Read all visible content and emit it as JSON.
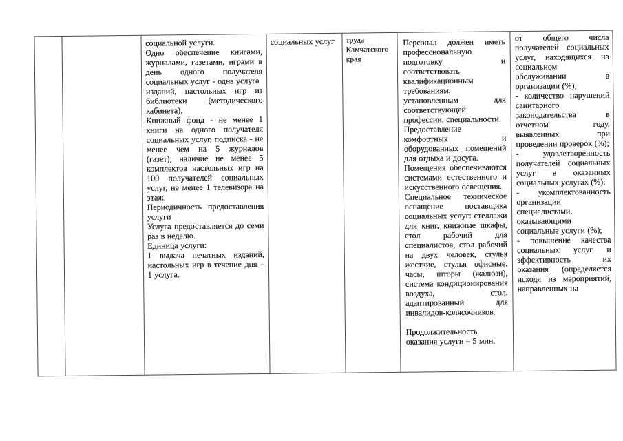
{
  "page": {
    "kind": "scanned document page",
    "language": "ru",
    "paper_color": "#ffffff",
    "ink_color": "#1f1f1f",
    "border_color": "#4b4b4b"
  },
  "table": {
    "columns": [
      {
        "name": "column-1-empty",
        "paragraphs": []
      },
      {
        "name": "column-2-empty",
        "paragraphs": []
      },
      {
        "name": "column-3-service-description",
        "paragraphs": [
          "социальной услуги.",
          "Одно обеспечение книгами, журналами, газетами, играми в день одного получателя социальных услуг - одна услуга",
          "изданий, настольных игр из библиотеки (методического кабинета).",
          "Книжный фонд - не менее 1 книги на одного получателя социальных услуг, подписка - не менее чем на 5 журналов (газет), наличие не менее 5 комплектов настольных игр на 100 получателей социальных услуг, не менее 1 телевизора на этаж.",
          "Периодичность предоставления услуги",
          "Услуга предоставляется до семи раз в неделю.",
          "Единица услуги:",
          "1 выдача печатных изданий, настольных игр в течение дня – 1 услуга."
        ]
      },
      {
        "name": "column-4-provider",
        "paragraphs": [
          "социальных услуг"
        ]
      },
      {
        "name": "column-5-authority",
        "paragraphs": [
          "труда Камчатского края"
        ]
      },
      {
        "name": "column-6-quality-requirements",
        "paragraphs": [
          "Персонал должен иметь профессиональную подготовку и соответствовать квалификационным требованиям, установленным для соответствующей профессии, специальности.",
          "Предоставление комфортных и оборудованных помещений для отдыха и досуга.",
          "Помещения обеспечиваются системами естественного и искусственного освещения.",
          "Специальное техническое оснащение поставщика социальных услуг: стеллажи для книг, книжные шкафы, стол рабочий для специалистов, стол рабочий на двух человек, стулья жесткие, стулья офисные, часы, шторы (жалюзи), система кондиционирования воздуха, стол, адаптированный для инвалидов-колясочников.",
          "Продолжительность оказания услуги – 5 мин."
        ]
      },
      {
        "name": "column-7-quality-indicators",
        "paragraphs": [
          "от общего числа получателей социальных услуг, находящихся на социальном обслуживании в организации (%);",
          "- количество нарушений санитарного законодательства в отчетном году, выявленных при проведении проверок (%);",
          "- удовлетворенность получателей социальных услуг в оказанных социальных услугах (%);",
          "- укомплектованность организации специалистами, оказывающими социальные услуги (%);",
          "- повышение качества социальных услуг и эффективность их оказания (определяется исходя из мероприятий, направленных на"
        ]
      }
    ]
  }
}
